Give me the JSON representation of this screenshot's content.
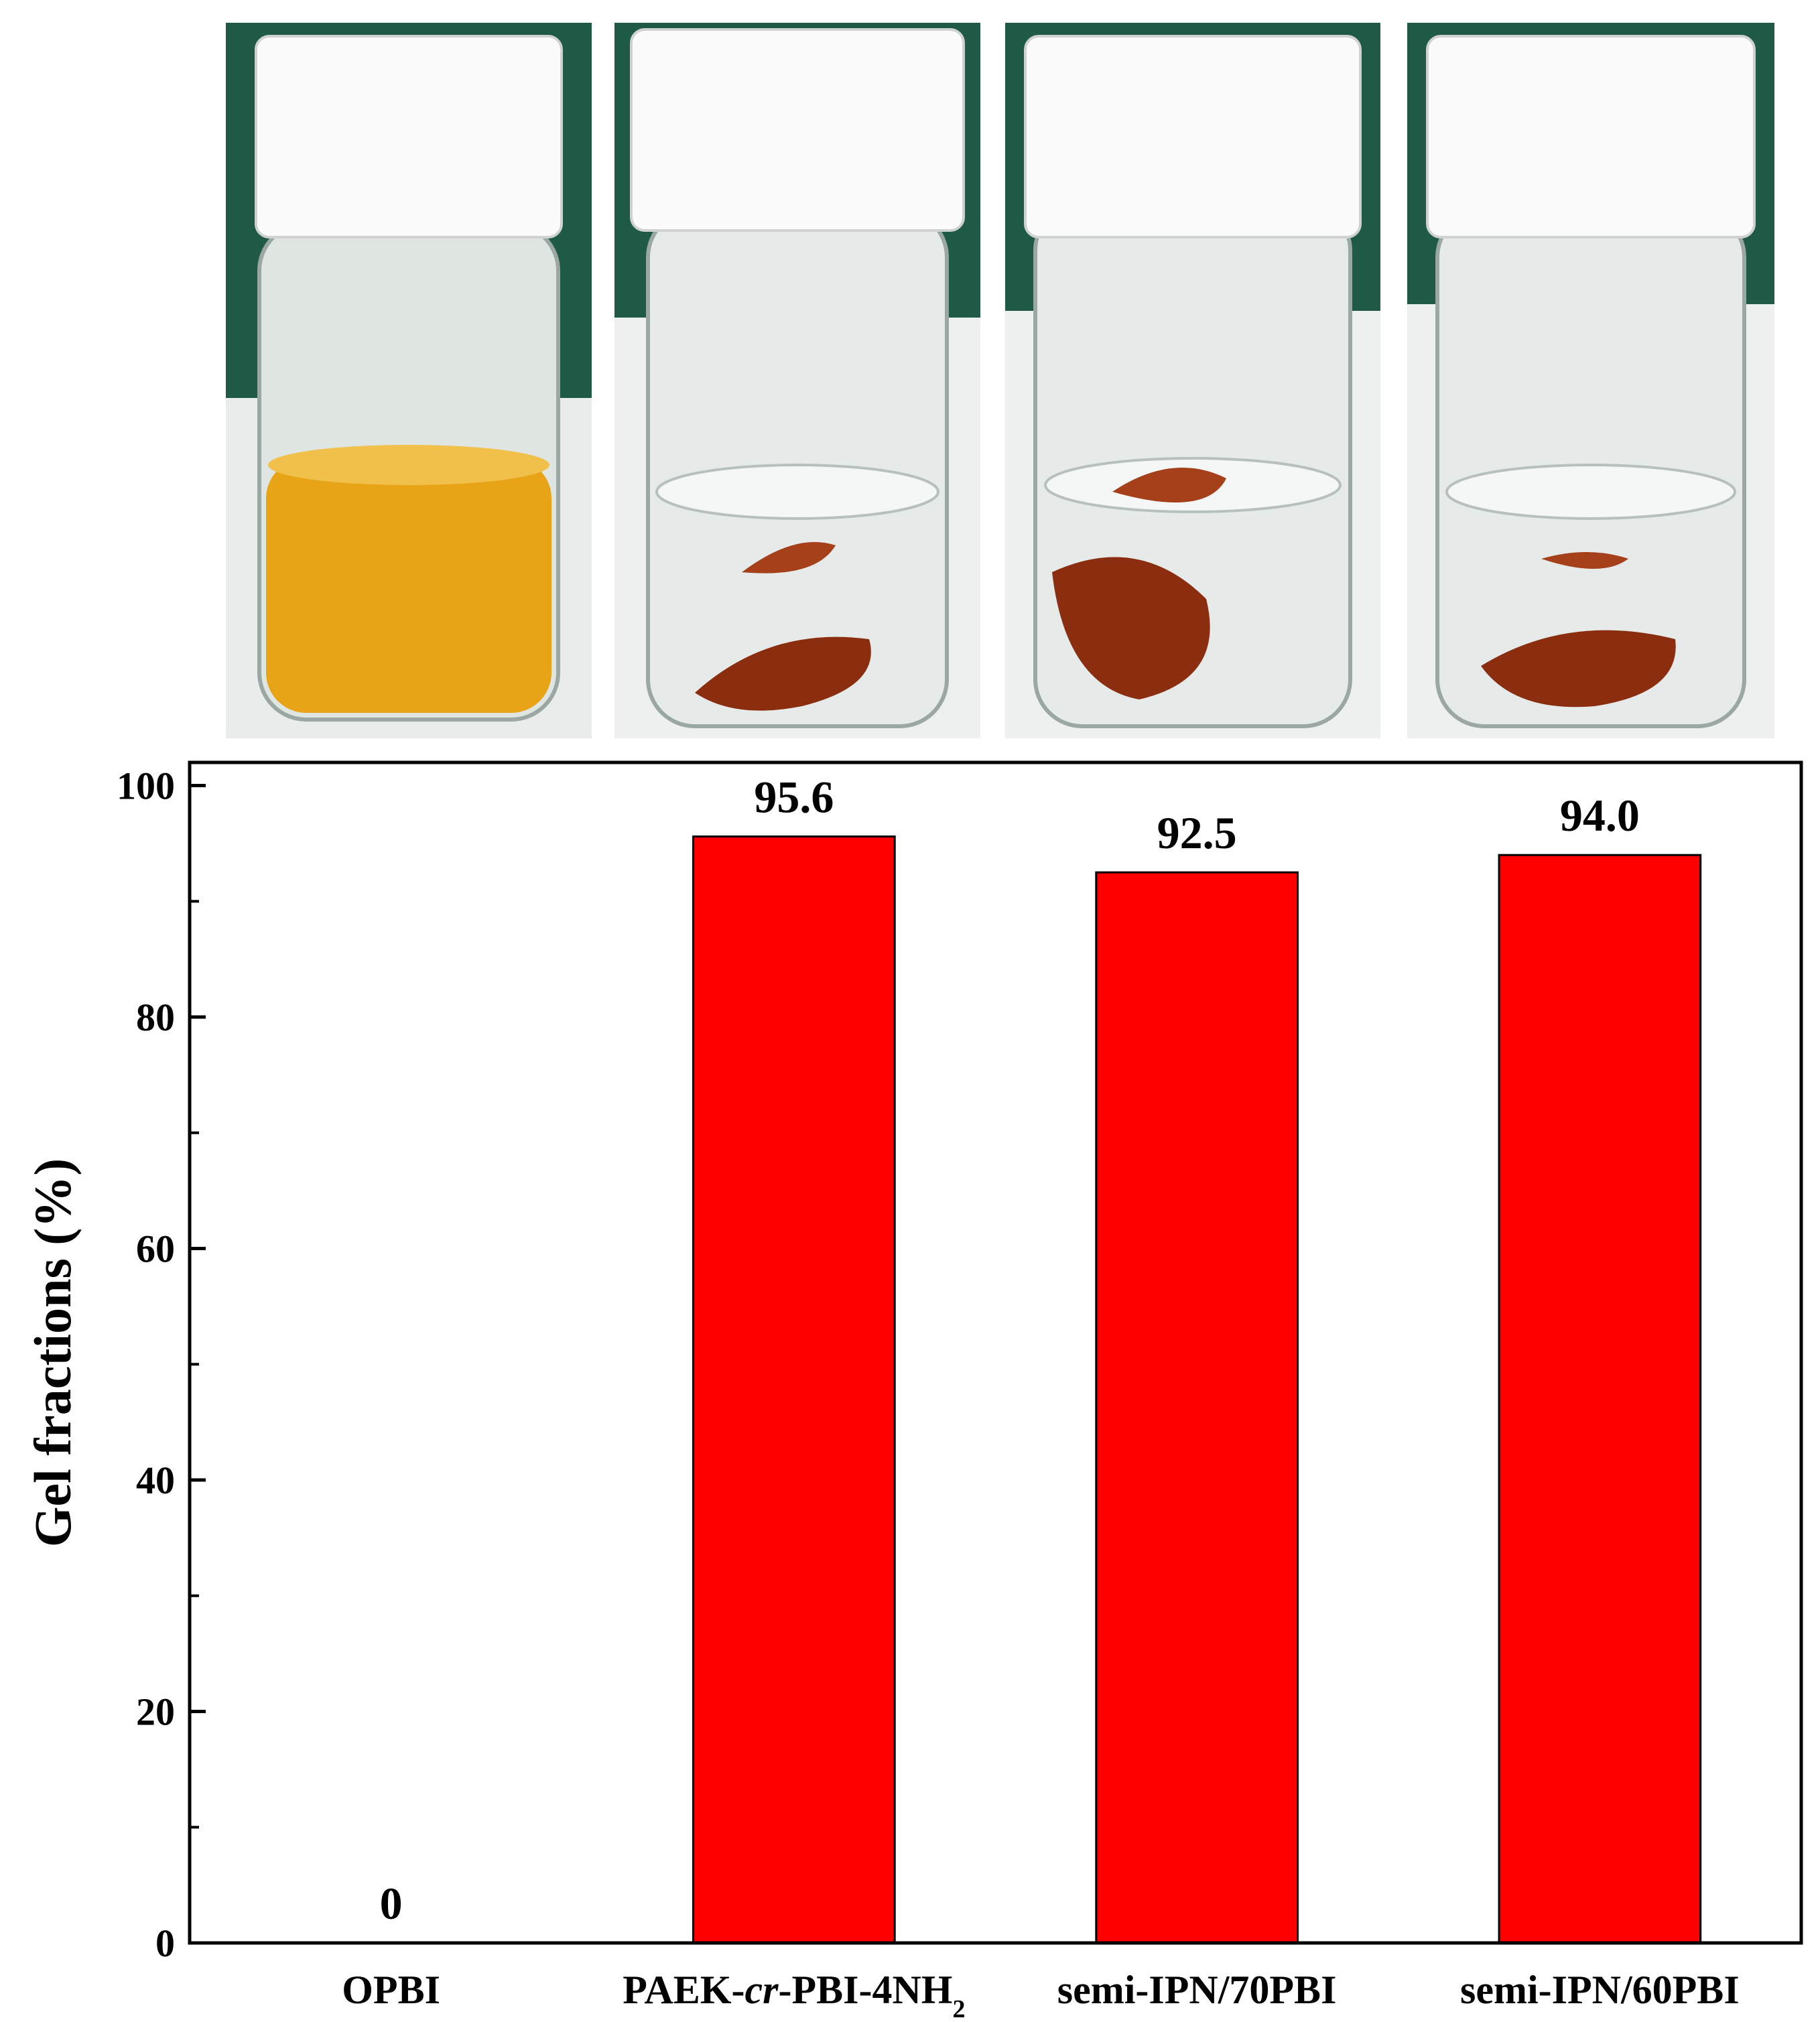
{
  "photos": [
    {
      "sample": "OPBI",
      "solution": "yellow-dissolved"
    },
    {
      "sample": "PAEK-cr-PBI-4NH2",
      "solution": "clear-with-film"
    },
    {
      "sample": "semi-IPN/70PBI",
      "solution": "clear-with-film"
    },
    {
      "sample": "semi-IPN/60PBI",
      "solution": "clear-with-film"
    }
  ],
  "colors": {
    "bar": "#ff0000",
    "yellow_solution": "#e8a317",
    "film": "#8b2e10",
    "backdrop_top": "#1f5a46"
  },
  "chart_data": {
    "type": "bar",
    "categories": [
      {
        "main": "OPBI",
        "italic": "",
        "tail": "",
        "sub": ""
      },
      {
        "main": "PAEK-",
        "italic": "cr",
        "tail": "-PBI-4NH",
        "sub": "2"
      },
      {
        "main": "semi-IPN/70PBI",
        "italic": "",
        "tail": "",
        "sub": ""
      },
      {
        "main": "semi-IPN/60PBI",
        "italic": "",
        "tail": "",
        "sub": ""
      }
    ],
    "values": [
      0,
      95.6,
      92.5,
      94.0
    ],
    "value_labels": [
      "0",
      "95.6",
      "92.5",
      "94.0"
    ],
    "ylabel": "Gel fractions (%)",
    "xlabel": "",
    "ylim": [
      0,
      102
    ],
    "yticks": [
      0,
      20,
      40,
      60,
      80,
      100
    ],
    "minor_step": 10,
    "legend": "none",
    "grid": false
  }
}
